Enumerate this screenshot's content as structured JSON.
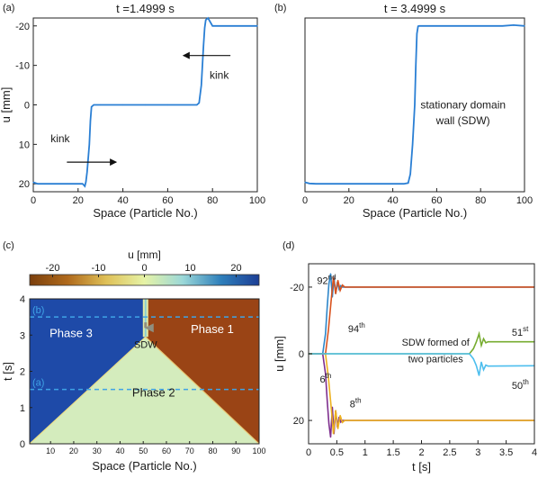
{
  "chart_data": [
    {
      "panel": "(a)",
      "type": "line",
      "title": "t =1.4999 s",
      "xlabel": "Space (Particle No.)",
      "ylabel": "u [mm]",
      "xlim": [
        0,
        100
      ],
      "ylim": [
        22,
        -22
      ],
      "y_reversed": true,
      "xticks": [
        "0",
        "20",
        "40",
        "60",
        "80",
        "100"
      ],
      "yticks": [
        "-20",
        "-10",
        "0",
        "10",
        "20"
      ],
      "color": "#2a7fd4",
      "series": [
        {
          "x": [
            0,
            2,
            5,
            10,
            15,
            20,
            22,
            23,
            23.5,
            24,
            25,
            25.5,
            26,
            27,
            30,
            40,
            50,
            60,
            70,
            73,
            74,
            75,
            76,
            76.5,
            77,
            78,
            80,
            90,
            100
          ],
          "y": [
            19.6,
            20,
            20,
            20,
            20,
            20,
            20,
            20.6,
            19.5,
            17,
            10,
            4,
            0.5,
            0,
            0,
            0,
            0,
            0,
            0,
            0,
            -0.5,
            -5,
            -15,
            -19.5,
            -21.5,
            -22,
            -20,
            -20,
            -20
          ]
        }
      ],
      "annotations": [
        {
          "text": "kink",
          "x": 83,
          "y": -7.5,
          "arrow": {
            "from": [
              88,
              -12.5
            ],
            "to": [
              67,
              -12.5
            ]
          }
        },
        {
          "text": "kink",
          "x": 12,
          "y": 8.5,
          "arrow": {
            "from": [
              15,
              14.5
            ],
            "to": [
              37,
              14.5
            ]
          }
        }
      ]
    },
    {
      "panel": "(b)",
      "type": "line",
      "title": "t = 3.4999 s",
      "xlabel": "Space (Particle No.)",
      "xlim": [
        0,
        100
      ],
      "ylim": [
        22,
        -22
      ],
      "y_reversed": true,
      "xticks": [
        "0",
        "20",
        "40",
        "60",
        "80",
        "100"
      ],
      "color": "#2a7fd4",
      "series": [
        {
          "x": [
            0,
            2,
            5,
            10,
            20,
            30,
            40,
            45,
            47,
            48,
            49,
            50,
            50.5,
            51,
            51.5,
            52,
            60,
            70,
            80,
            90,
            95,
            100
          ],
          "y": [
            19.6,
            19.9,
            20,
            20,
            20,
            20,
            20,
            20,
            19.8,
            17.5,
            10,
            0,
            -10,
            -18,
            -19.9,
            -20,
            -20,
            -20,
            -20,
            -20,
            -20.2,
            -20
          ]
        }
      ],
      "annotations": [
        {
          "text": "stationary domain",
          "x": 72,
          "y": 0
        },
        {
          "text": "wall (SDW)",
          "x": 72,
          "y": 4
        }
      ]
    },
    {
      "panel": "(c)",
      "type": "heatmap",
      "xlabel": "Space (Particle No.)",
      "ylabel": "t [s]",
      "xlim": [
        1,
        100
      ],
      "ylim": [
        0,
        4
      ],
      "xticks": [
        "10",
        "20",
        "30",
        "40",
        "50",
        "60",
        "70",
        "80",
        "90",
        "100"
      ],
      "yticks": [
        "0",
        "1",
        "2",
        "3",
        "4"
      ],
      "colorbar": {
        "label": "u [mm]",
        "range": [
          -25,
          25
        ],
        "ticks": [
          "-20",
          "-10",
          "0",
          "10",
          "20"
        ],
        "colors": [
          "#7b3f0c",
          "#b06a1c",
          "#dfc057",
          "#e6f3a6",
          "#9bd8d8",
          "#2e7fbb",
          "#1c3e95"
        ]
      },
      "regions": [
        {
          "label": "Phase 3",
          "value": 20,
          "color": "#1e4aa8"
        },
        {
          "label": "Phase 1",
          "value": -20,
          "color": "#9a4415"
        },
        {
          "label": "Phase 2",
          "value": 0,
          "color": "#d4ecbd"
        }
      ],
      "domain_wall": {
        "label": "SDW",
        "x": 51,
        "t_from": 2.95,
        "t_to": 4
      },
      "cuts": [
        {
          "label": "(b)",
          "t": 3.5
        },
        {
          "label": "(a)",
          "t": 1.5
        }
      ]
    },
    {
      "panel": "(d)",
      "type": "line",
      "xlabel": "t [s]",
      "ylabel": "u [mm]",
      "xlim": [
        0,
        4
      ],
      "ylim": [
        27,
        -27
      ],
      "y_reversed": true,
      "xticks": [
        "0",
        "0.5",
        "1",
        "1.5",
        "2",
        "2.5",
        "3",
        "3.5",
        "4"
      ],
      "yticks": [
        "-20",
        "0",
        "20"
      ],
      "series": [
        {
          "color": "#2e86c9",
          "x": [
            0,
            0.25,
            0.3,
            0.33,
            0.36,
            0.39,
            0.42,
            0.45,
            0.48,
            0.51,
            0.54,
            0.57,
            0.6,
            4
          ],
          "y": [
            0,
            0,
            -6,
            -14,
            -21,
            -24,
            -17,
            -23,
            -18,
            -21.5,
            -19.4,
            -20.4,
            -20,
            -20
          ]
        },
        {
          "color": "#d9531e",
          "x": [
            0,
            0.3,
            0.35,
            0.4,
            0.44,
            0.48,
            0.52,
            0.56,
            0.6,
            0.64,
            4
          ],
          "y": [
            0,
            0,
            -7,
            -16,
            -23,
            -18,
            -22,
            -19,
            -20.6,
            -20,
            -20
          ]
        },
        {
          "color": "#7e2f8e",
          "x": [
            0,
            0.25,
            0.3,
            0.33,
            0.36,
            0.39,
            0.42,
            0.45,
            0.48,
            0.51,
            0.54,
            0.57,
            0.6,
            4
          ],
          "y": [
            0,
            0,
            6,
            14,
            21,
            25,
            16,
            24,
            17,
            22,
            19,
            20.5,
            20,
            20
          ]
        },
        {
          "color": "#edb120",
          "x": [
            0,
            0.3,
            0.35,
            0.4,
            0.44,
            0.48,
            0.52,
            0.56,
            0.6,
            0.64,
            4
          ],
          "y": [
            0,
            0,
            7,
            16,
            24,
            17,
            22.5,
            18.5,
            20.6,
            20,
            20
          ]
        },
        {
          "color": "#77ac30",
          "x": [
            0,
            2.85,
            2.92,
            2.97,
            3.02,
            3.06,
            3.1,
            3.14,
            3.18,
            4
          ],
          "y": [
            0,
            0,
            -1.5,
            -3.5,
            -6,
            -2.5,
            -4.5,
            -3.3,
            -3.6,
            -3.6
          ]
        },
        {
          "color": "#4dbeee",
          "x": [
            0,
            2.85,
            2.92,
            2.97,
            3.02,
            3.06,
            3.1,
            3.14,
            3.18,
            4
          ],
          "y": [
            0,
            0,
            1.5,
            3.5,
            6.5,
            2.5,
            4.8,
            3.4,
            3.7,
            3.6
          ]
        }
      ],
      "annotations": [
        {
          "text": "92",
          "sup": "nd",
          "x": 0.15,
          "y": -22
        },
        {
          "text": "94",
          "sup": "th",
          "x": 0.7,
          "y": -7.5
        },
        {
          "text": "6",
          "sup": "th",
          "x": 0.2,
          "y": 7.5
        },
        {
          "text": "8",
          "sup": "th",
          "x": 0.73,
          "y": 15
        },
        {
          "text": "51",
          "sup": "st",
          "x": 3.6,
          "y": -6.5
        },
        {
          "text": "50",
          "sup": "th",
          "x": 3.6,
          "y": 9.5
        },
        {
          "text": "SDW formed of",
          "x": 2.25,
          "y": -3.5
        },
        {
          "text": "two particles",
          "x": 2.25,
          "y": 1.5
        }
      ]
    }
  ]
}
